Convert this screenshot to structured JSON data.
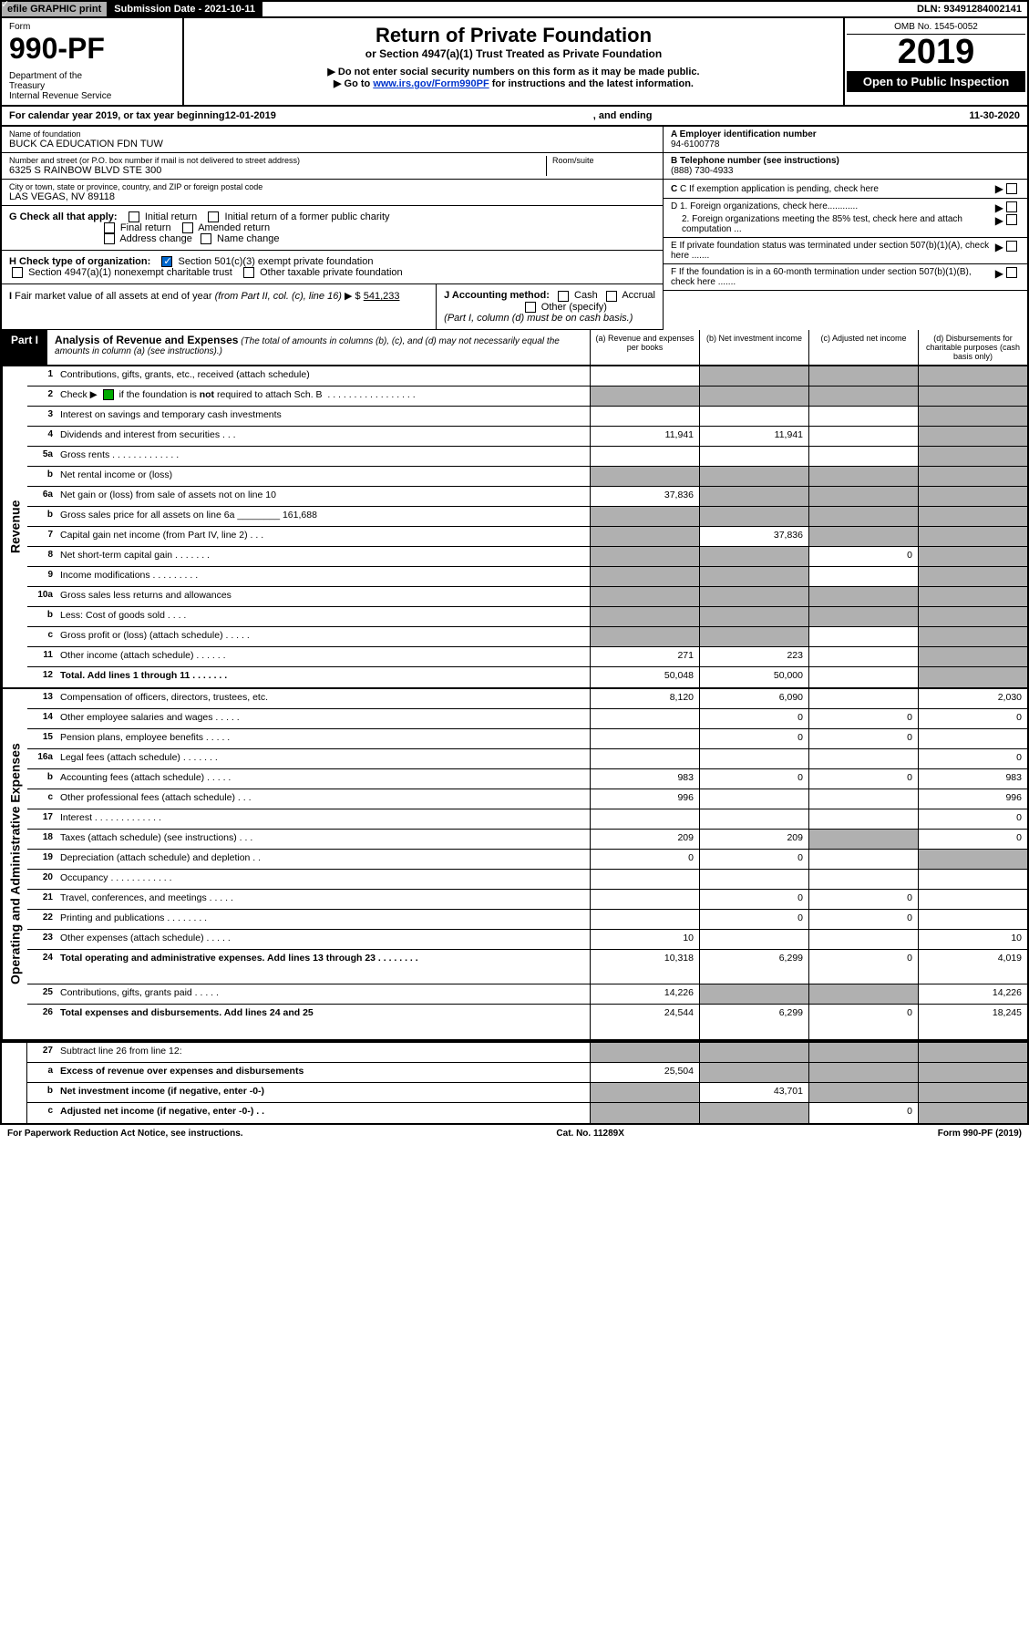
{
  "top_bar": {
    "efile": "efile GRAPHIC print",
    "submission": "Submission Date - 2021-10-11",
    "dln": "DLN: 93491284002141"
  },
  "header": {
    "form_label": "Form",
    "form_number": "990-PF",
    "dept": "Department of the Treasury\nInternal Revenue Service",
    "title": "Return of Private Foundation",
    "subtitle": "or Section 4947(a)(1) Trust Treated as Private Foundation",
    "note1": "▶ Do not enter social security numbers on this form as it may be made public.",
    "note2_pre": "▶ Go to ",
    "note2_link": "www.irs.gov/Form990PF",
    "note2_post": " for instructions and the latest information.",
    "omb": "OMB No. 1545-0052",
    "year": "2019",
    "open": "Open to Public Inspection"
  },
  "cal_year": {
    "pre": "For calendar year 2019, or tax year beginning ",
    "begin": "12-01-2019",
    "mid": " , and ending ",
    "end": "11-30-2020"
  },
  "foundation": {
    "name_lbl": "Name of foundation",
    "name": "BUCK CA EDUCATION FDN TUW",
    "addr_lbl": "Number and street (or P.O. box number if mail is not delivered to street address)",
    "addr": "6325 S RAINBOW BLVD STE 300",
    "room_lbl": "Room/suite",
    "city_lbl": "City or town, state or province, country, and ZIP or foreign postal code",
    "city": "LAS VEGAS, NV  89118",
    "ein_lbl": "A Employer identification number",
    "ein": "94-6100778",
    "tel_lbl": "B Telephone number (see instructions)",
    "tel": "(888) 730-4933",
    "c": "C If exemption application is pending, check here",
    "d1": "D 1. Foreign organizations, check here............",
    "d2": "2. Foreign organizations meeting the 85% test, check here and attach computation ...",
    "e": "E If private foundation status was terminated under section 507(b)(1)(A), check here .......",
    "f": "F If the foundation is in a 60-month termination under section 507(b)(1)(B), check here .......",
    "g_lbl": "G Check all that apply:",
    "g_opts": [
      "Initial return",
      "Initial return of a former public charity",
      "Final return",
      "Amended return",
      "Address change",
      "Name change"
    ],
    "h_lbl": "H Check type of organization:",
    "h1": "Section 501(c)(3) exempt private foundation",
    "h2": "Section 4947(a)(1) nonexempt charitable trust",
    "h3": "Other taxable private foundation",
    "i_lbl": "I Fair market value of all assets at end of year (from Part II, col. (c), line 16) ▶ $",
    "i_val": "541,233",
    "j_lbl": "J Accounting method:",
    "j_cash": "Cash",
    "j_accrual": "Accrual",
    "j_other": "Other (specify)",
    "j_note": "(Part I, column (d) must be on cash basis.)"
  },
  "part1": {
    "label": "Part I",
    "title": "Analysis of Revenue and Expenses",
    "desc": " (The total of amounts in columns (b), (c), and (d) may not necessarily equal the amounts in column (a) (see instructions).)",
    "col_a": "(a) Revenue and expenses per books",
    "col_b": "(b) Net investment income",
    "col_c": "(c) Adjusted net income",
    "col_d": "(d) Disbursements for charitable purposes (cash basis only)"
  },
  "side_labels": {
    "revenue": "Revenue",
    "expenses": "Operating and Administrative Expenses"
  },
  "rows": [
    {
      "n": "1",
      "d": "Contributions, gifts, grants, etc., received (attach schedule)",
      "a": "",
      "b": "grey",
      "c": "grey",
      "dd": "grey"
    },
    {
      "n": "2",
      "d": "Check ▶ [✓] if the foundation is not required to attach Sch. B  . . . . . . . . . . . . . . . . .",
      "a": "grey",
      "b": "grey",
      "c": "grey",
      "dd": "grey",
      "check": true
    },
    {
      "n": "3",
      "d": "Interest on savings and temporary cash investments",
      "a": "",
      "b": "",
      "c": "",
      "dd": "grey"
    },
    {
      "n": "4",
      "d": "Dividends and interest from securities  . . .",
      "a": "11,941",
      "b": "11,941",
      "c": "",
      "dd": "grey"
    },
    {
      "n": "5a",
      "d": "Gross rents  . . . . . . . . . . . . .",
      "a": "",
      "b": "",
      "c": "",
      "dd": "grey"
    },
    {
      "n": "b",
      "d": "Net rental income or (loss)",
      "a": "grey",
      "b": "grey",
      "c": "grey",
      "dd": "grey",
      "short": true
    },
    {
      "n": "6a",
      "d": "Net gain or (loss) from sale of assets not on line 10",
      "a": "37,836",
      "b": "grey",
      "c": "grey",
      "dd": "grey"
    },
    {
      "n": "b",
      "d": "Gross sales price for all assets on line 6a ________ 161,688",
      "a": "grey",
      "b": "grey",
      "c": "grey",
      "dd": "grey",
      "inline_val": "161,688"
    },
    {
      "n": "7",
      "d": "Capital gain net income (from Part IV, line 2)  . . .",
      "a": "grey",
      "b": "37,836",
      "c": "grey",
      "dd": "grey"
    },
    {
      "n": "8",
      "d": "Net short-term capital gain  . . . . . . .",
      "a": "grey",
      "b": "grey",
      "c": "0",
      "dd": "grey"
    },
    {
      "n": "9",
      "d": "Income modifications  . . . . . . . . .",
      "a": "grey",
      "b": "grey",
      "c": "",
      "dd": "grey"
    },
    {
      "n": "10a",
      "d": "Gross sales less returns and allowances",
      "a": "grey",
      "b": "grey",
      "c": "grey",
      "dd": "grey",
      "short": true
    },
    {
      "n": "b",
      "d": "Less: Cost of goods sold  . . . .",
      "a": "grey",
      "b": "grey",
      "c": "grey",
      "dd": "grey",
      "short": true
    },
    {
      "n": "c",
      "d": "Gross profit or (loss) (attach schedule)  . . . . .",
      "a": "grey",
      "b": "grey",
      "c": "",
      "dd": "grey"
    },
    {
      "n": "11",
      "d": "Other income (attach schedule)  . . . . . .",
      "a": "271",
      "b": "223",
      "c": "",
      "dd": "grey"
    },
    {
      "n": "12",
      "d": "Total. Add lines 1 through 11  . . . . . . .",
      "a": "50,048",
      "b": "50,000",
      "c": "",
      "dd": "grey",
      "bold": true
    }
  ],
  "exp_rows": [
    {
      "n": "13",
      "d": "Compensation of officers, directors, trustees, etc.",
      "a": "8,120",
      "b": "6,090",
      "c": "",
      "dd": "2,030"
    },
    {
      "n": "14",
      "d": "Other employee salaries and wages  . . . . .",
      "a": "",
      "b": "0",
      "c": "0",
      "dd": "0"
    },
    {
      "n": "15",
      "d": "Pension plans, employee benefits  . . . . .",
      "a": "",
      "b": "0",
      "c": "0",
      "dd": ""
    },
    {
      "n": "16a",
      "d": "Legal fees (attach schedule)  . . . . . . .",
      "a": "",
      "b": "",
      "c": "",
      "dd": "0"
    },
    {
      "n": "b",
      "d": "Accounting fees (attach schedule)  . . . . .",
      "a": "983",
      "b": "0",
      "c": "0",
      "dd": "983"
    },
    {
      "n": "c",
      "d": "Other professional fees (attach schedule)  . . .",
      "a": "996",
      "b": "",
      "c": "",
      "dd": "996"
    },
    {
      "n": "17",
      "d": "Interest  . . . . . . . . . . . . .",
      "a": "",
      "b": "",
      "c": "",
      "dd": "0"
    },
    {
      "n": "18",
      "d": "Taxes (attach schedule) (see instructions)  . . .",
      "a": "209",
      "b": "209",
      "c": "grey",
      "dd": "0"
    },
    {
      "n": "19",
      "d": "Depreciation (attach schedule) and depletion  . .",
      "a": "0",
      "b": "0",
      "c": "",
      "dd": "grey"
    },
    {
      "n": "20",
      "d": "Occupancy  . . . . . . . . . . . .",
      "a": "",
      "b": "",
      "c": "",
      "dd": ""
    },
    {
      "n": "21",
      "d": "Travel, conferences, and meetings  . . . . .",
      "a": "",
      "b": "0",
      "c": "0",
      "dd": ""
    },
    {
      "n": "22",
      "d": "Printing and publications  . . . . . . . .",
      "a": "",
      "b": "0",
      "c": "0",
      "dd": ""
    },
    {
      "n": "23",
      "d": "Other expenses (attach schedule)  . . . . .",
      "a": "10",
      "b": "",
      "c": "",
      "dd": "10"
    },
    {
      "n": "24",
      "d": "Total operating and administrative expenses. Add lines 13 through 23  . . . . . . . .",
      "a": "10,318",
      "b": "6,299",
      "c": "0",
      "dd": "4,019",
      "bold": true,
      "tall": true
    },
    {
      "n": "25",
      "d": "Contributions, gifts, grants paid  . . . . .",
      "a": "14,226",
      "b": "grey",
      "c": "grey",
      "dd": "14,226"
    },
    {
      "n": "26",
      "d": "Total expenses and disbursements. Add lines 24 and 25",
      "a": "24,544",
      "b": "6,299",
      "c": "0",
      "dd": "18,245",
      "bold": true,
      "tall": true
    }
  ],
  "final_rows": [
    {
      "n": "27",
      "d": "Subtract line 26 from line 12:",
      "a": "grey",
      "b": "grey",
      "c": "grey",
      "dd": "grey"
    },
    {
      "n": "a",
      "d": "Excess of revenue over expenses and disbursements",
      "a": "25,504",
      "b": "grey",
      "c": "grey",
      "dd": "grey",
      "bold": true
    },
    {
      "n": "b",
      "d": "Net investment income (if negative, enter -0-)",
      "a": "grey",
      "b": "43,701",
      "c": "grey",
      "dd": "grey",
      "bold": true
    },
    {
      "n": "c",
      "d": "Adjusted net income (if negative, enter -0-)  . .",
      "a": "grey",
      "b": "grey",
      "c": "0",
      "dd": "grey",
      "bold": true
    }
  ],
  "footer": {
    "left": "For Paperwork Reduction Act Notice, see instructions.",
    "mid": "Cat. No. 11289X",
    "right": "Form 990-PF (2019)"
  },
  "colors": {
    "grey": "#b0b0b0",
    "link": "#0033cc"
  }
}
